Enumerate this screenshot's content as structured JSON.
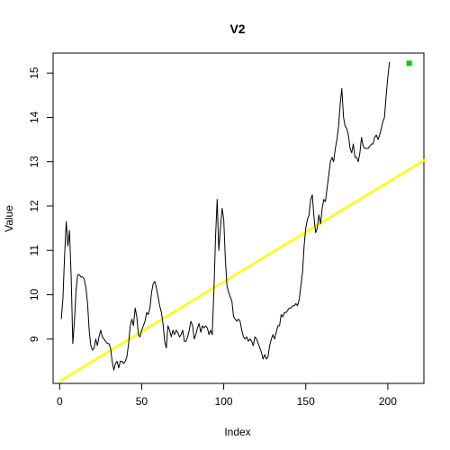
{
  "chart_data": {
    "type": "line",
    "title": "V2",
    "xlabel": "Index",
    "ylabel": "Value",
    "xlim": [
      -4,
      222
    ],
    "ylim": [
      8.0,
      15.45
    ],
    "x_ticks": [
      0,
      50,
      100,
      150,
      200
    ],
    "y_ticks": [
      9,
      10,
      11,
      12,
      13,
      14,
      15
    ],
    "grid": false,
    "colors": {
      "series": "#000000",
      "trend": "#ffff00",
      "marker": "#00cc00"
    },
    "series": [
      {
        "values": [
          [
            1,
            9.45
          ],
          [
            2,
            9.9
          ],
          [
            3,
            10.9
          ],
          [
            4,
            11.65
          ],
          [
            5,
            11.1
          ],
          [
            6,
            11.45
          ],
          [
            7,
            10.4
          ],
          [
            8,
            8.9
          ],
          [
            9,
            9.4
          ],
          [
            10,
            10.1
          ],
          [
            11,
            10.45
          ],
          [
            12,
            10.45
          ],
          [
            13,
            10.4
          ],
          [
            14,
            10.4
          ],
          [
            15,
            10.35
          ],
          [
            16,
            10.15
          ],
          [
            17,
            9.8
          ],
          [
            18,
            9.2
          ],
          [
            19,
            8.85
          ],
          [
            20,
            8.75
          ],
          [
            21,
            8.8
          ],
          [
            22,
            9.0
          ],
          [
            23,
            8.85
          ],
          [
            24,
            9.05
          ],
          [
            25,
            9.2
          ],
          [
            26,
            9.05
          ],
          [
            27,
            9.0
          ],
          [
            28,
            8.95
          ],
          [
            29,
            8.9
          ],
          [
            30,
            8.9
          ],
          [
            31,
            8.8
          ],
          [
            32,
            8.5
          ],
          [
            33,
            8.3
          ],
          [
            34,
            8.45
          ],
          [
            35,
            8.5
          ],
          [
            36,
            8.35
          ],
          [
            37,
            8.5
          ],
          [
            38,
            8.5
          ],
          [
            39,
            8.45
          ],
          [
            40,
            8.5
          ],
          [
            41,
            8.6
          ],
          [
            42,
            8.9
          ],
          [
            43,
            9.3
          ],
          [
            44,
            9.45
          ],
          [
            45,
            9.3
          ],
          [
            46,
            9.7
          ],
          [
            47,
            9.5
          ],
          [
            48,
            9.1
          ],
          [
            49,
            9.05
          ],
          [
            50,
            9.2
          ],
          [
            51,
            9.3
          ],
          [
            52,
            9.4
          ],
          [
            53,
            9.6
          ],
          [
            54,
            9.55
          ],
          [
            55,
            9.7
          ],
          [
            56,
            10.05
          ],
          [
            57,
            10.25
          ],
          [
            58,
            10.3
          ],
          [
            59,
            10.15
          ],
          [
            60,
            9.95
          ],
          [
            61,
            9.75
          ],
          [
            62,
            9.6
          ],
          [
            63,
            9.35
          ],
          [
            64,
            8.95
          ],
          [
            65,
            8.8
          ],
          [
            66,
            9.3
          ],
          [
            67,
            9.2
          ],
          [
            68,
            9.05
          ],
          [
            69,
            9.2
          ],
          [
            70,
            9.1
          ],
          [
            71,
            9.2
          ],
          [
            72,
            9.15
          ],
          [
            73,
            9.05
          ],
          [
            74,
            9.1
          ],
          [
            75,
            9.2
          ],
          [
            76,
            8.95
          ],
          [
            77,
            8.95
          ],
          [
            78,
            9.05
          ],
          [
            79,
            9.2
          ],
          [
            80,
            9.4
          ],
          [
            81,
            9.3
          ],
          [
            82,
            9.0
          ],
          [
            83,
            9.1
          ],
          [
            84,
            9.25
          ],
          [
            85,
            9.35
          ],
          [
            86,
            9.15
          ],
          [
            87,
            9.3
          ],
          [
            88,
            9.25
          ],
          [
            89,
            9.3
          ],
          [
            90,
            9.25
          ],
          [
            91,
            9.1
          ],
          [
            92,
            9.2
          ],
          [
            93,
            9.1
          ],
          [
            94,
            10.1
          ],
          [
            95,
            11.3
          ],
          [
            96,
            12.15
          ],
          [
            97,
            11.0
          ],
          [
            98,
            11.5
          ],
          [
            99,
            11.95
          ],
          [
            100,
            11.7
          ],
          [
            101,
            10.8
          ],
          [
            102,
            10.2
          ],
          [
            103,
            10.05
          ],
          [
            104,
            9.95
          ],
          [
            105,
            9.85
          ],
          [
            106,
            9.5
          ],
          [
            107,
            9.45
          ],
          [
            108,
            9.4
          ],
          [
            109,
            9.45
          ],
          [
            110,
            9.4
          ],
          [
            111,
            9.2
          ],
          [
            112,
            9.05
          ],
          [
            113,
            9.0
          ],
          [
            114,
            9.05
          ],
          [
            115,
            8.95
          ],
          [
            116,
            9.0
          ],
          [
            117,
            8.95
          ],
          [
            118,
            8.85
          ],
          [
            119,
            9.05
          ],
          [
            120,
            9.0
          ],
          [
            121,
            8.9
          ],
          [
            122,
            8.8
          ],
          [
            123,
            8.7
          ],
          [
            124,
            8.55
          ],
          [
            125,
            8.65
          ],
          [
            126,
            8.55
          ],
          [
            127,
            8.6
          ],
          [
            128,
            8.85
          ],
          [
            129,
            9.0
          ],
          [
            130,
            9.1
          ],
          [
            131,
            9.0
          ],
          [
            132,
            9.15
          ],
          [
            133,
            9.3
          ],
          [
            134,
            9.3
          ],
          [
            135,
            9.55
          ],
          [
            136,
            9.5
          ],
          [
            137,
            9.6
          ],
          [
            138,
            9.6
          ],
          [
            139,
            9.65
          ],
          [
            140,
            9.7
          ],
          [
            141,
            9.7
          ],
          [
            142,
            9.75
          ],
          [
            143,
            9.75
          ],
          [
            144,
            9.8
          ],
          [
            145,
            9.75
          ],
          [
            146,
            9.9
          ],
          [
            147,
            10.2
          ],
          [
            148,
            10.5
          ],
          [
            149,
            11.1
          ],
          [
            150,
            11.5
          ],
          [
            151,
            11.7
          ],
          [
            152,
            11.8
          ],
          [
            153,
            12.15
          ],
          [
            154,
            12.25
          ],
          [
            155,
            11.75
          ],
          [
            156,
            11.4
          ],
          [
            157,
            11.5
          ],
          [
            158,
            11.8
          ],
          [
            159,
            11.6
          ],
          [
            160,
            11.95
          ],
          [
            161,
            12.15
          ],
          [
            162,
            12.1
          ],
          [
            163,
            12.4
          ],
          [
            164,
            12.7
          ],
          [
            165,
            13.0
          ],
          [
            166,
            13.1
          ],
          [
            167,
            13.0
          ],
          [
            168,
            13.3
          ],
          [
            169,
            13.5
          ],
          [
            170,
            13.8
          ],
          [
            171,
            14.3
          ],
          [
            172,
            14.65
          ],
          [
            173,
            14.0
          ],
          [
            174,
            13.8
          ],
          [
            175,
            13.75
          ],
          [
            176,
            13.6
          ],
          [
            177,
            13.3
          ],
          [
            178,
            13.2
          ],
          [
            179,
            13.4
          ],
          [
            180,
            13.1
          ],
          [
            181,
            13.1
          ],
          [
            182,
            13.0
          ],
          [
            183,
            13.2
          ],
          [
            184,
            13.55
          ],
          [
            185,
            13.35
          ],
          [
            186,
            13.3
          ],
          [
            187,
            13.3
          ],
          [
            188,
            13.3
          ],
          [
            189,
            13.35
          ],
          [
            190,
            13.4
          ],
          [
            191,
            13.4
          ],
          [
            192,
            13.55
          ],
          [
            193,
            13.6
          ],
          [
            194,
            13.5
          ],
          [
            195,
            13.6
          ],
          [
            196,
            13.75
          ],
          [
            197,
            13.9
          ],
          [
            198,
            14.0
          ],
          [
            199,
            14.5
          ],
          [
            200,
            14.9
          ],
          [
            201,
            15.25
          ]
        ]
      }
    ],
    "trend_line": {
      "x": [
        0,
        223
      ],
      "y": [
        8.05,
        13.05
      ]
    },
    "highlight_point": {
      "x": 213,
      "y": 15.22
    }
  }
}
